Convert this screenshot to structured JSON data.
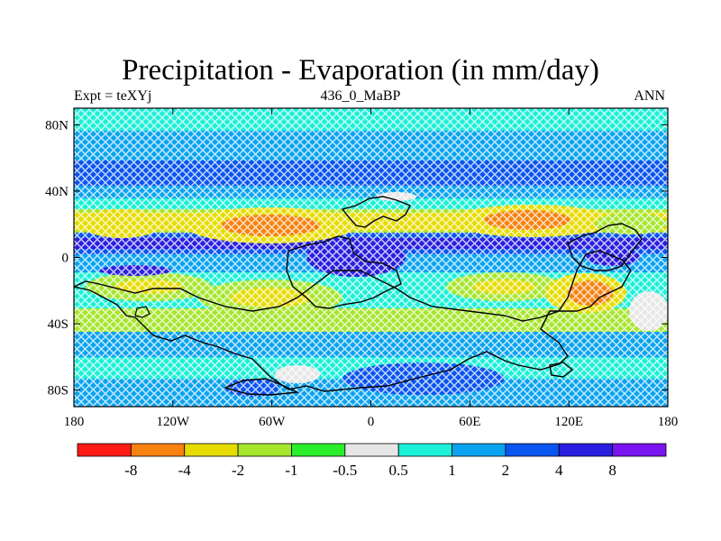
{
  "title": "Precipitation - Evaporation (in mm/day)",
  "subtitle_left": "Expt = teXYj",
  "subtitle_center": "436_0_MaBP",
  "subtitle_right": "ANN",
  "map": {
    "projection": "cylindrical-equidistant",
    "lon_range": [
      -180,
      180
    ],
    "lat_range": [
      -90,
      90
    ],
    "lat_ticks": [
      {
        "value": 80,
        "label": "80N"
      },
      {
        "value": 40,
        "label": "40N"
      },
      {
        "value": 0,
        "label": "0"
      },
      {
        "value": -40,
        "label": "40S"
      },
      {
        "value": -80,
        "label": "80S"
      }
    ],
    "lon_ticks": [
      {
        "value": -180,
        "label": "180"
      },
      {
        "value": -120,
        "label": "120W"
      },
      {
        "value": -60,
        "label": "60W"
      },
      {
        "value": 0,
        "label": "0"
      },
      {
        "value": 60,
        "label": "60E"
      },
      {
        "value": 120,
        "label": "120E"
      },
      {
        "value": 180,
        "label": "180"
      }
    ]
  },
  "colorbar": {
    "colors": [
      "#ff1a14",
      "#f7820f",
      "#e6dc00",
      "#a6e62d",
      "#2bee2b",
      "#e6e6e6",
      "#1bf0d8",
      "#0ba3f0",
      "#0a55f0",
      "#2a1ee0",
      "#7a14f0"
    ],
    "labels": [
      "-8",
      "-4",
      "-2",
      "-1",
      "-0.5",
      "0.5",
      "1",
      "2",
      "4",
      "8"
    ]
  },
  "colors": {
    "land_outline": "#000000",
    "stipple": "#ffffff"
  }
}
